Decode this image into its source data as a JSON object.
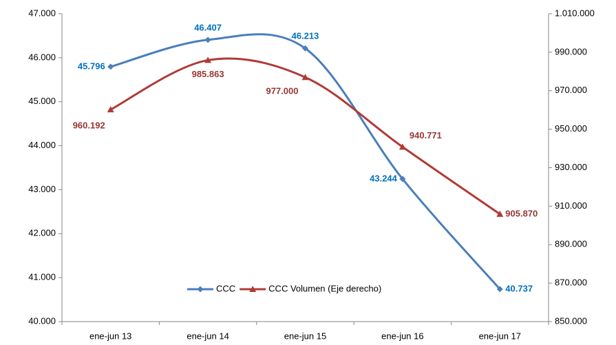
{
  "chart_data": {
    "type": "line",
    "categories": [
      "ene-jun 13",
      "ene-jun 14",
      "ene-jun 15",
      "ene-jun 16",
      "ene-jun 17"
    ],
    "series": [
      {
        "name": "CCC",
        "color": "#4a7ebb",
        "label_color": "#0070c0",
        "marker": "diamond",
        "values": [
          45796,
          46407,
          46213,
          43244,
          40737
        ],
        "value_labels": [
          "45.796",
          "46.407",
          "46.213",
          "43.244",
          "40.737"
        ]
      },
      {
        "name": "CCC Volumen (Eje derecho)",
        "color": "#b03a36",
        "label_color": "#953735",
        "marker": "triangle",
        "axis": "y2",
        "values": [
          960192,
          985863,
          977000,
          940771,
          905870
        ],
        "value_labels": [
          "960.192",
          "985.863",
          "977.000",
          "940.771",
          "905.870"
        ]
      }
    ],
    "ylim": [
      40000,
      47000
    ],
    "yticks": [
      {
        "value": 40000,
        "label": "40.000"
      },
      {
        "value": 41000,
        "label": "41.000"
      },
      {
        "value": 42000,
        "label": "42.000"
      },
      {
        "value": 43000,
        "label": "43.000"
      },
      {
        "value": 44000,
        "label": "44.000"
      },
      {
        "value": 45000,
        "label": "45.000"
      },
      {
        "value": 46000,
        "label": "46.000"
      },
      {
        "value": 47000,
        "label": "47.000"
      }
    ],
    "y2lim": [
      850000,
      1010000
    ],
    "y2ticks": [
      {
        "value": 850000,
        "label": "850.000"
      },
      {
        "value": 870000,
        "label": "870.000"
      },
      {
        "value": 890000,
        "label": "890.000"
      },
      {
        "value": 910000,
        "label": "910.000"
      },
      {
        "value": 930000,
        "label": "930.000"
      },
      {
        "value": 950000,
        "label": "950.000"
      },
      {
        "value": 970000,
        "label": "970.000"
      },
      {
        "value": 990000,
        "label": "990.000"
      },
      {
        "value": 1010000,
        "label": "1.010.000"
      }
    ],
    "smooth": true,
    "grid": false,
    "legend": "bottom"
  }
}
